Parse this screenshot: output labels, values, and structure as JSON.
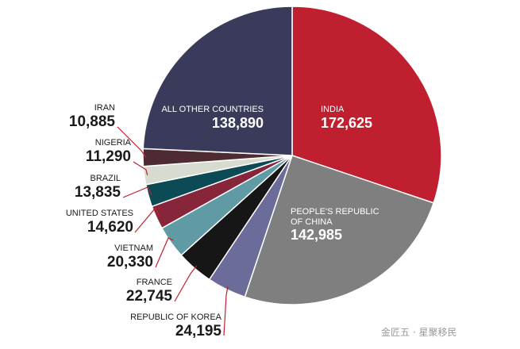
{
  "chart_data": {
    "type": "pie",
    "slices": [
      {
        "name": "INDIA",
        "value": 172625,
        "value_label": "172,625",
        "color": "#c01f2f"
      },
      {
        "name": "PEOPLE'S REPUBLIC OF CHINA",
        "name_lines": [
          "PEOPLE'S REPUBLIC",
          "OF CHINA"
        ],
        "value": 142985,
        "value_label": "142,985",
        "color": "#7f7f7f"
      },
      {
        "name": "REPUBLIC OF KOREA",
        "value": 24195,
        "value_label": "24,195",
        "color": "#6b6c9a"
      },
      {
        "name": "FRANCE",
        "value": 22745,
        "value_label": "22,745",
        "color": "#161616"
      },
      {
        "name": "VIETNAM",
        "value": 20330,
        "value_label": "20,330",
        "color": "#5f9aa5"
      },
      {
        "name": "UNITED STATES",
        "value": 14620,
        "value_label": "14,620",
        "color": "#87253a"
      },
      {
        "name": "BRAZIL",
        "value": 13835,
        "value_label": "13,835",
        "color": "#0c4a55"
      },
      {
        "name": "NIGERIA",
        "value": 11290,
        "value_label": "11,290",
        "color": "#d7dbd0"
      },
      {
        "name": "IRAN",
        "value": 10885,
        "value_label": "10,885",
        "color": "#4e2a33"
      },
      {
        "name": "ALL OTHER COUNTRIES",
        "value": 138890,
        "value_label": "138,890",
        "color": "#3a3a5a"
      }
    ]
  },
  "watermark": "金匠五 · 星聚移民",
  "colors": {
    "leader": "#c01f2f",
    "text_dark": "#1a1a1a",
    "text_light": "#ffffff"
  }
}
